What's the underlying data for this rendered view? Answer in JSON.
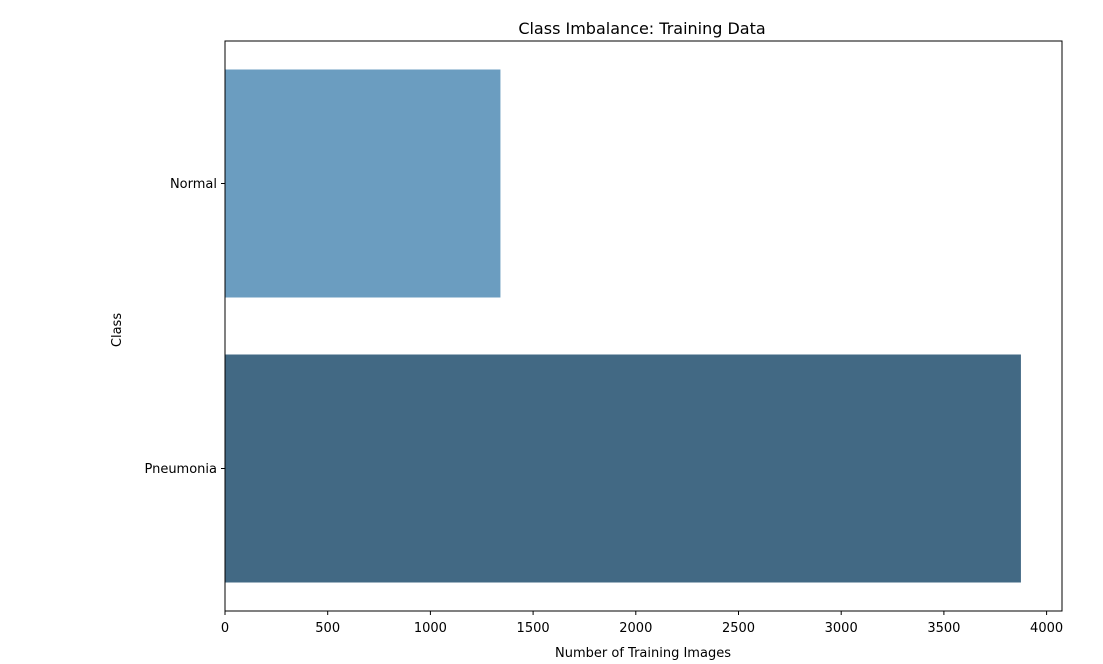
{
  "chart_data": {
    "type": "bar",
    "orientation": "horizontal",
    "title": "Class Imbalance: Training Data",
    "xlabel": "Number of Training Images",
    "ylabel": "Class",
    "categories": [
      "Normal",
      "Pneumonia"
    ],
    "values": [
      1341,
      3875
    ],
    "colors": [
      "#6b9dc0",
      "#426984"
    ],
    "xlim": [
      0,
      4075
    ],
    "xticks": [
      0,
      500,
      1000,
      1500,
      2000,
      2500,
      3000,
      3500,
      4000
    ],
    "grid": false,
    "legend": "none"
  }
}
